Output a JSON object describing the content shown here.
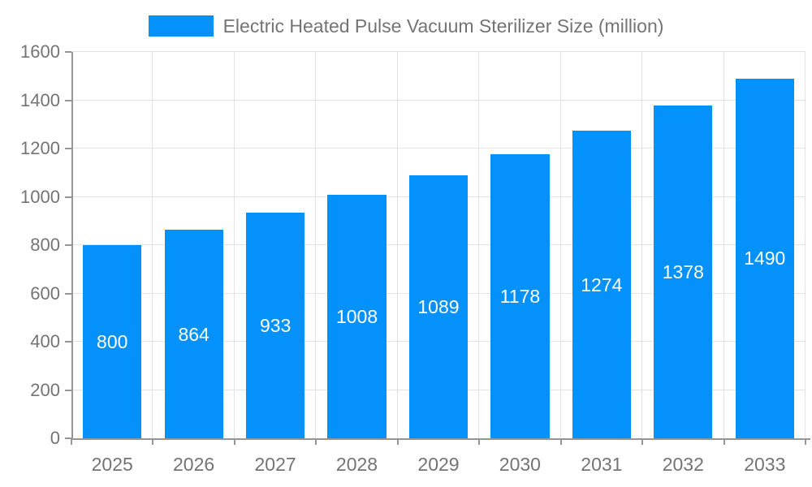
{
  "chart_data": {
    "type": "bar",
    "title": "Electric Heated Pulse Vacuum Sterilizer Size (million)",
    "categories": [
      "2025",
      "2026",
      "2027",
      "2028",
      "2029",
      "2030",
      "2031",
      "2032",
      "2033"
    ],
    "values": [
      800,
      864,
      933,
      1008,
      1089,
      1178,
      1274,
      1378,
      1490
    ],
    "xlabel": "",
    "ylabel": "",
    "ylim": [
      0,
      1600
    ],
    "ytick_step": 200,
    "grid": true,
    "legend_position": "top-center",
    "value_label_position": "inside-center",
    "colors": {
      "bar": "#0491fa",
      "grid": "#e3e3e3",
      "axis": "#969696",
      "tick_text": "#747474",
      "legend_text": "#747474",
      "value_text": "#ffffff",
      "background": "#ffffff"
    }
  }
}
